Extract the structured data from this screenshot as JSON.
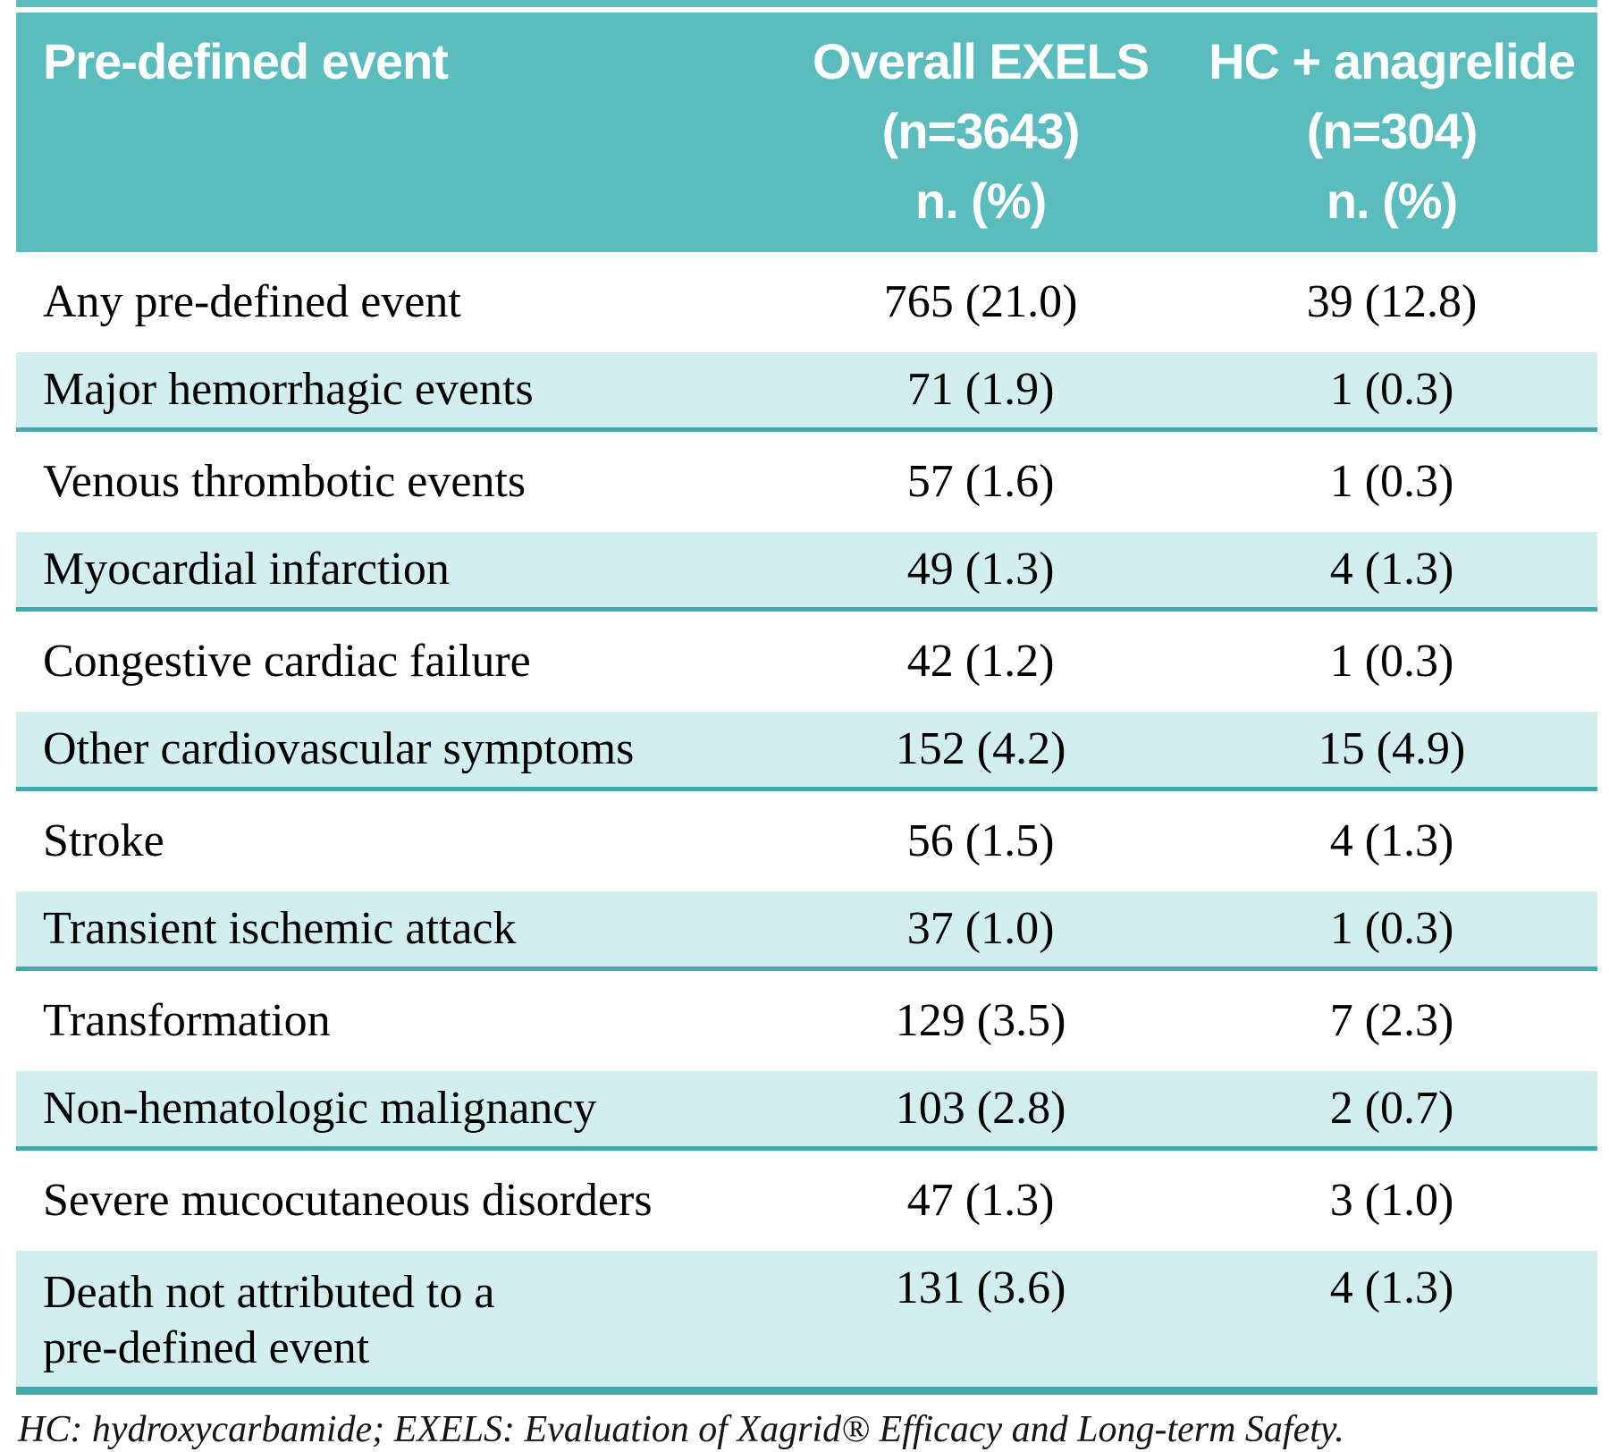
{
  "colors": {
    "header_bg": "#5abcbd",
    "stripe_bg": "#d3eeef",
    "rule_teal": "#3fabad",
    "header_text": "#ffffff",
    "body_text": "#000000"
  },
  "table": {
    "header": {
      "col1": "Pre-defined event",
      "col2": {
        "line1": "Overall EXELS",
        "line2": "(n=3643)",
        "line3": "n. (%)"
      },
      "col3": {
        "line1": "HC + anagrelide",
        "line2": "(n=304)",
        "line3": "n. (%)"
      }
    },
    "rows": [
      {
        "label": "Any pre-defined event",
        "overall": "765 (21.0)",
        "hc": "39 (12.8)"
      },
      {
        "label": "Major hemorrhagic events",
        "overall": "71 (1.9)",
        "hc": "1 (0.3)"
      },
      {
        "label": "Venous thrombotic events",
        "overall": "57 (1.6)",
        "hc": "1 (0.3)"
      },
      {
        "label": "Myocardial infarction",
        "overall": "49 (1.3)",
        "hc": "4 (1.3)"
      },
      {
        "label": "Congestive cardiac failure",
        "overall": "42 (1.2)",
        "hc": "1 (0.3)"
      },
      {
        "label": "Other cardiovascular symptoms",
        "overall": "152 (4.2)",
        "hc": "15 (4.9)"
      },
      {
        "label": "Stroke",
        "overall": "56 (1.5)",
        "hc": "4 (1.3)"
      },
      {
        "label": "Transient ischemic attack",
        "overall": "37 (1.0)",
        "hc": "1 (0.3)"
      },
      {
        "label": "Transformation",
        "overall": "129 (3.5)",
        "hc": "7 (2.3)"
      },
      {
        "label": "Non-hematologic malignancy",
        "overall": "103 (2.8)",
        "hc": "2 (0.7)"
      },
      {
        "label": "Severe mucocutaneous disorders",
        "overall": "47 (1.3)",
        "hc": "3 (1.0)"
      },
      {
        "label": "Death not attributed to a",
        "label_line2": "pre-defined event",
        "overall": "131 (3.6)",
        "hc": "4 (1.3)"
      }
    ],
    "footnote": "HC: hydroxycarbamide; EXELS: Evaluation of Xagrid® Efficacy and Long-term Safety."
  },
  "chart_data": {
    "type": "table",
    "title": "Pre-defined events",
    "columns": [
      "Pre-defined event",
      "Overall EXELS (n=3643) n. (%)",
      "HC + anagrelide (n=304) n. (%)"
    ],
    "rows": [
      [
        "Any pre-defined event",
        "765 (21.0)",
        "39 (12.8)"
      ],
      [
        "Major hemorrhagic events",
        "71 (1.9)",
        "1 (0.3)"
      ],
      [
        "Venous thrombotic events",
        "57 (1.6)",
        "1 (0.3)"
      ],
      [
        "Myocardial infarction",
        "49 (1.3)",
        "4 (1.3)"
      ],
      [
        "Congestive cardiac failure",
        "42 (1.2)",
        "1 (0.3)"
      ],
      [
        "Other cardiovascular symptoms",
        "152 (4.2)",
        "15 (4.9)"
      ],
      [
        "Stroke",
        "56 (1.5)",
        "4 (1.3)"
      ],
      [
        "Transient ischemic attack",
        "37 (1.0)",
        "1 (0.3)"
      ],
      [
        "Transformation",
        "129 (3.5)",
        "7 (2.3)"
      ],
      [
        "Non-hematologic malignancy",
        "103 (2.8)",
        "2 (0.7)"
      ],
      [
        "Severe mucocutaneous disorders",
        "47 (1.3)",
        "3 (1.0)"
      ],
      [
        "Death not attributed to a pre-defined event",
        "131 (3.6)",
        "4 (1.3)"
      ]
    ]
  }
}
